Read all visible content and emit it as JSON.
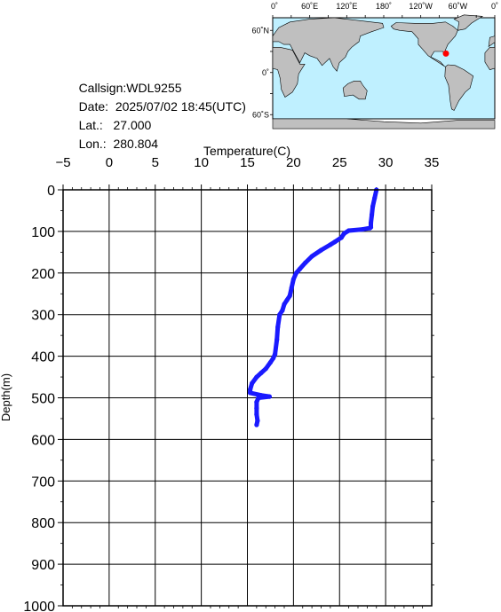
{
  "info": {
    "callsign_label": "Callsign:",
    "callsign": "WDL9255",
    "date_label": "Date:",
    "date": "2025/07/02 18:45(UTC)",
    "lat_label": "Lat.:",
    "lat": "27.000",
    "lon_label": "Lon.:",
    "lon": "280.804"
  },
  "map": {
    "top_labels": [
      "0˚",
      "60˚E",
      "120˚E",
      "180˚",
      "120˚W",
      "60˚W",
      "0˚"
    ],
    "lat_labels": [
      "60˚N",
      "0˚",
      "60˚S"
    ],
    "ocean_color": "#bff0ff",
    "land_color": "#bfbfbf",
    "marker_color": "#ff0000",
    "marker": {
      "lon": 280.804,
      "lat": 27.0
    }
  },
  "chart_data": {
    "type": "line",
    "title": "",
    "xlabel": "Temperature(C)",
    "ylabel": "Depth(m)",
    "xlim": [
      -5,
      35
    ],
    "ylim": [
      1000,
      0
    ],
    "x_ticks": [
      -5,
      0,
      5,
      10,
      15,
      20,
      25,
      30,
      35
    ],
    "y_ticks": [
      0,
      100,
      200,
      300,
      400,
      500,
      600,
      700,
      800,
      900,
      1000
    ],
    "x_tick_labels": [
      "−5",
      "0",
      "5",
      "10",
      "15",
      "20",
      "25",
      "30",
      "35"
    ],
    "y_tick_labels": [
      "0",
      "100",
      "200",
      "300",
      "400",
      "500",
      "600",
      "700",
      "800",
      "900",
      "1000"
    ],
    "grid": true,
    "series": [
      {
        "color": "#1a1aff",
        "x": [
          29.0,
          28.8,
          28.6,
          28.5,
          28.4,
          28.4,
          28.3,
          27.5,
          26.0,
          25.5,
          25.2,
          24.5,
          24.0,
          23.0,
          22.0,
          21.3,
          20.7,
          20.3,
          20.0,
          19.8,
          19.6,
          19.3,
          19.0,
          18.8,
          18.5,
          18.3,
          18.2,
          18.0,
          17.8,
          17.5,
          17.0,
          16.5,
          16.0,
          15.5,
          15.3,
          15.3,
          16.5,
          17.4,
          16.2,
          16.0,
          16.0,
          16.0,
          16.1,
          16.0
        ],
        "y": [
          0,
          20,
          40,
          60,
          80,
          90,
          92,
          95,
          98,
          105,
          115,
          125,
          132,
          145,
          160,
          175,
          190,
          200,
          215,
          235,
          255,
          265,
          275,
          290,
          300,
          330,
          360,
          395,
          405,
          415,
          430,
          440,
          450,
          465,
          480,
          488,
          494,
          497,
          500,
          510,
          525,
          540,
          555,
          565
        ]
      }
    ]
  }
}
